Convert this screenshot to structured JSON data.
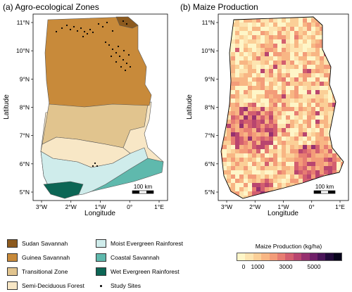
{
  "panel_a": {
    "title": "(a) Agro-ecological Zones",
    "xlabel": "Longitude",
    "ylabel": "Latitude",
    "x_ticks": [
      "3°W",
      "2°W",
      "1°W",
      "0°",
      "1°E"
    ],
    "y_ticks": [
      "11°N",
      "10°N",
      "9°N",
      "8°N",
      "7°N",
      "6°N",
      "5°N"
    ],
    "scalebar": "100 km"
  },
  "panel_b": {
    "title": "(b) Maize Production",
    "xlabel": "Longitude",
    "ylabel": "Latitude",
    "x_ticks": [
      "3°W",
      "2°W",
      "1°W",
      "0°",
      "1°E"
    ],
    "y_ticks": [
      "11°N",
      "10°N",
      "9°N",
      "8°N",
      "7°N",
      "6°N",
      "5°N"
    ],
    "scalebar": "100 km"
  },
  "zone_legend": [
    {
      "label": "Sudan Savannah",
      "color": "#8c5a1e"
    },
    {
      "label": "Guinea Savannah",
      "color": "#c88a3a"
    },
    {
      "label": "Transitional Zone",
      "color": "#e1c48e"
    },
    {
      "label": "Semi-Deciduous Forest",
      "color": "#f8e7c6"
    },
    {
      "label": "Moist Evergreen Rainforest",
      "color": "#cfeceb"
    },
    {
      "label": "Coastal Savannah",
      "color": "#5fb9ad"
    },
    {
      "label": "Wet Evergreen Rainforest",
      "color": "#0c6655"
    },
    {
      "label": "Study Sites",
      "color": "#000000"
    }
  ],
  "colorbar": {
    "title": "Maize Production (kg/ha)",
    "ticks": [
      "0",
      "1000",
      "3000",
      "5000"
    ],
    "tick_values": [
      0,
      1000,
      3000,
      5000
    ],
    "range": [
      -500,
      7000
    ],
    "colors": [
      "#fef6c8",
      "#fde4b0",
      "#fbcf97",
      "#f8b684",
      "#f39c79",
      "#e77d72",
      "#d35f6f",
      "#b8456f",
      "#96306f",
      "#702069",
      "#4a1559",
      "#220a3a",
      "#07041a"
    ]
  }
}
